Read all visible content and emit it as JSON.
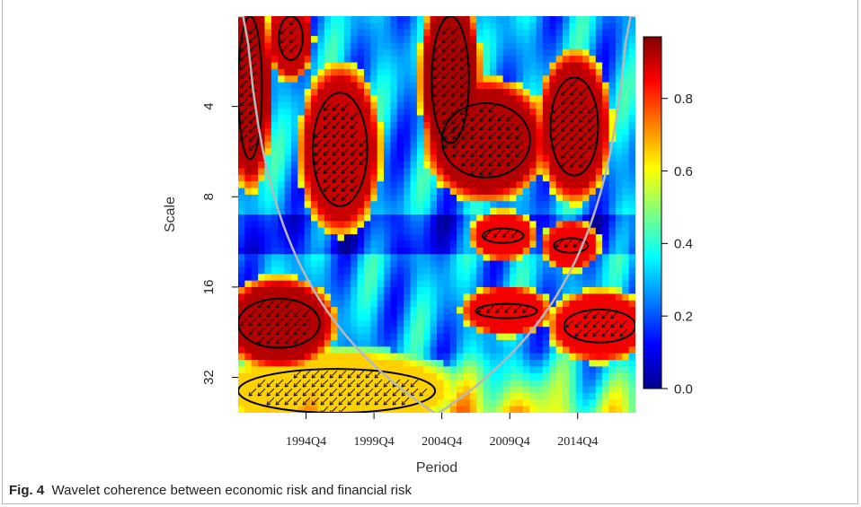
{
  "caption": {
    "label": "Fig. 4",
    "text": "Wavelet coherence between economic risk and financial risk"
  },
  "chart_data": {
    "type": "heatmap",
    "title": "",
    "xlabel": "Period",
    "ylabel": "Scale",
    "x_ticks": [
      {
        "label": "1994Q4",
        "index": 24
      },
      {
        "label": "1999Q4",
        "index": 44
      },
      {
        "label": "2004Q4",
        "index": 64
      },
      {
        "label": "2009Q4",
        "index": 84
      },
      {
        "label": "2014Q4",
        "index": 104
      }
    ],
    "y_scale": "log2",
    "y_ticks": [
      4,
      8,
      16,
      32
    ],
    "y_range": [
      2,
      42
    ],
    "x_index_range": [
      4,
      121
    ],
    "colorbar": {
      "ticks": [
        "0.0",
        "0.2",
        "0.4",
        "0.6",
        "0.8"
      ],
      "tick_values": [
        0.0,
        0.2,
        0.4,
        0.6,
        0.8
      ],
      "range": [
        0,
        0.97
      ],
      "colors": [
        "#00008f",
        "#0000ff",
        "#0080ff",
        "#00ffff",
        "#80ff80",
        "#ffff00",
        "#ff8000",
        "#ff0000",
        "#800000"
      ]
    },
    "significant_regions": [
      {
        "x": [
          4,
          11
        ],
        "y": [
          2.0,
          6.0
        ],
        "level": 0.92
      },
      {
        "x": [
          16,
          23
        ],
        "y": [
          2.0,
          2.8
        ],
        "level": 0.9
      },
      {
        "x": [
          26,
          42
        ],
        "y": [
          3.6,
          8.6
        ],
        "level": 0.9
      },
      {
        "x": [
          61,
          72
        ],
        "y": [
          2.0,
          5.3
        ],
        "level": 0.93
      },
      {
        "x": [
          64,
          90
        ],
        "y": [
          3.9,
          6.9
        ],
        "level": 0.92
      },
      {
        "x": [
          96,
          110
        ],
        "y": [
          3.2,
          6.8
        ],
        "level": 0.91
      },
      {
        "x": [
          76,
          88
        ],
        "y": [
          10.2,
          11.4
        ],
        "level": 0.86
      },
      {
        "x": [
          97,
          107
        ],
        "y": [
          11.0,
          12.3
        ],
        "level": 0.86
      },
      {
        "x": [
          4,
          28
        ],
        "y": [
          17.5,
          25.5
        ],
        "level": 0.92
      },
      {
        "x": [
          74,
          92
        ],
        "y": [
          18.2,
          20.3
        ],
        "level": 0.86
      },
      {
        "x": [
          100,
          121
        ],
        "y": [
          19.0,
          24.5
        ],
        "level": 0.86
      },
      {
        "x": [
          4,
          62
        ],
        "y": [
          30.0,
          42.0
        ],
        "level": 0.65
      }
    ]
  }
}
